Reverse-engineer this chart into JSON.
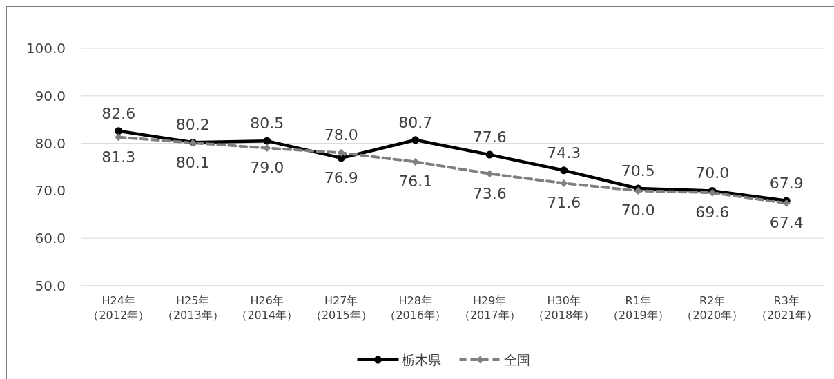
{
  "chart_data": {
    "type": "line",
    "categories": [
      "H24年（2012年）",
      "H25年（2013年）",
      "H26年（2014年）",
      "H27年（2015年）",
      "H28年（2016年）",
      "H29年（2017年）",
      "H30年（2018年）",
      "R1年（2019年）",
      "R2年（2020年）",
      "R3年（2021年）"
    ],
    "series": [
      {
        "name": "栃木県",
        "color": "#000000",
        "marker": "circle",
        "line_style": "solid",
        "values": [
          82.6,
          80.2,
          80.5,
          76.9,
          80.7,
          77.6,
          74.3,
          70.5,
          70.0,
          67.9
        ],
        "value_labels": [
          "82.6",
          "80.2",
          "80.5",
          "76.9",
          "80.7",
          "77.6",
          "74.3",
          "70.5",
          "70.0",
          "67.9"
        ]
      },
      {
        "name": "全国",
        "color": "#808080",
        "marker": "diamond",
        "line_style": "dashed",
        "values": [
          81.3,
          80.1,
          79.0,
          78.0,
          76.1,
          73.6,
          71.6,
          70.0,
          69.6,
          67.4
        ],
        "value_labels": [
          "81.3",
          "80.1",
          "79.0",
          "78.0",
          "76.1",
          "73.6",
          "71.6",
          "70.0",
          "69.6",
          "67.4"
        ]
      }
    ],
    "ylim": [
      50,
      100
    ],
    "yticks": [
      {
        "value": 50,
        "label": "50.0"
      },
      {
        "value": 60,
        "label": "60.0"
      },
      {
        "value": 70,
        "label": "70.0"
      },
      {
        "value": 80,
        "label": "80.0"
      },
      {
        "value": 90,
        "label": "90.0"
      },
      {
        "value": 100,
        "label": "100.0"
      }
    ],
    "grid": "y",
    "legend": "bottom"
  }
}
